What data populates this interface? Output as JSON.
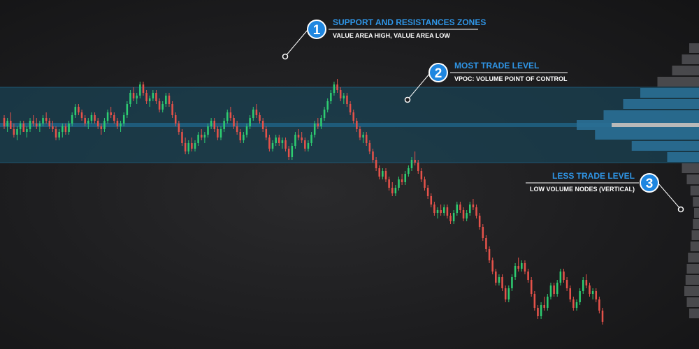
{
  "colors": {
    "up": "#2ecc71",
    "down": "#e5524a",
    "value_area": "#1a4253",
    "profile": "#2a6f95",
    "poc_line": "#1f5f80",
    "callout_title": "#2f95e6",
    "badge": "#1e86e0",
    "lvn": "#5a5a5e"
  },
  "callouts": [
    {
      "number": "1",
      "title": "SUPPORT AND RESISTANCES ZONES",
      "subtitle": "VALUE AREA HIGH, VALUE AREA LOW"
    },
    {
      "number": "2",
      "title": "MOST TRADE LEVEL",
      "subtitle": "VPOC: VOLUME POINT OF CONTROL"
    },
    {
      "number": "3",
      "title": "LESS TRADE LEVEL",
      "subtitle": "LOW VOLUME NODES (VERTICAL)"
    }
  ],
  "chart_data": {
    "type": "candlestick with volume profile",
    "axes_visible": false,
    "grid": false,
    "y_range": [
      0,
      100
    ],
    "value_area": {
      "high": 85,
      "low": 58
    },
    "poc": 71.5,
    "candles": [
      [
        74,
        75,
        70,
        71
      ],
      [
        71,
        74,
        69,
        73
      ],
      [
        73,
        76,
        70,
        70
      ],
      [
        70,
        72,
        67,
        68
      ],
      [
        68,
        71,
        66,
        70
      ],
      [
        70,
        73,
        68,
        72
      ],
      [
        72,
        73,
        69,
        69
      ],
      [
        69,
        71,
        67,
        70
      ],
      [
        70,
        74,
        69,
        73
      ],
      [
        73,
        75,
        71,
        72
      ],
      [
        72,
        74,
        70,
        71
      ],
      [
        71,
        73,
        69,
        72
      ],
      [
        72,
        75,
        71,
        74
      ],
      [
        74,
        76,
        72,
        73
      ],
      [
        73,
        74,
        70,
        71
      ],
      [
        71,
        73,
        69,
        70
      ],
      [
        70,
        71,
        66,
        67
      ],
      [
        67,
        70,
        66,
        69
      ],
      [
        69,
        72,
        67,
        71
      ],
      [
        71,
        72,
        68,
        69
      ],
      [
        69,
        73,
        68,
        72
      ],
      [
        72,
        76,
        71,
        75
      ],
      [
        75,
        79,
        74,
        78
      ],
      [
        78,
        79,
        75,
        76
      ],
      [
        76,
        77,
        73,
        74
      ],
      [
        74,
        75,
        71,
        72
      ],
      [
        72,
        74,
        70,
        73
      ],
      [
        73,
        76,
        72,
        75
      ],
      [
        75,
        76,
        72,
        73
      ],
      [
        73,
        74,
        70,
        71
      ],
      [
        71,
        72,
        68,
        70
      ],
      [
        70,
        74,
        69,
        73
      ],
      [
        73,
        77,
        72,
        76
      ],
      [
        76,
        78,
        74,
        75
      ],
      [
        75,
        76,
        72,
        73
      ],
      [
        73,
        74,
        70,
        71
      ],
      [
        71,
        73,
        69,
        72
      ],
      [
        72,
        76,
        71,
        75
      ],
      [
        75,
        80,
        74,
        79
      ],
      [
        79,
        84,
        78,
        83
      ],
      [
        83,
        85,
        80,
        81
      ],
      [
        81,
        83,
        79,
        82
      ],
      [
        82,
        87,
        81,
        86
      ],
      [
        86,
        87,
        82,
        83
      ],
      [
        83,
        84,
        79,
        80
      ],
      [
        80,
        82,
        78,
        81
      ],
      [
        81,
        84,
        80,
        83
      ],
      [
        83,
        84,
        79,
        80
      ],
      [
        80,
        81,
        76,
        77
      ],
      [
        77,
        80,
        76,
        79
      ],
      [
        79,
        83,
        78,
        82
      ],
      [
        82,
        83,
        78,
        79
      ],
      [
        79,
        80,
        74,
        75
      ],
      [
        75,
        76,
        71,
        72
      ],
      [
        72,
        73,
        68,
        69
      ],
      [
        69,
        70,
        64,
        65
      ],
      [
        65,
        67,
        61,
        62
      ],
      [
        62,
        66,
        61,
        65
      ],
      [
        65,
        67,
        62,
        63
      ],
      [
        63,
        66,
        62,
        65
      ],
      [
        65,
        69,
        64,
        68
      ],
      [
        68,
        70,
        66,
        67
      ],
      [
        67,
        69,
        65,
        68
      ],
      [
        68,
        72,
        67,
        71
      ],
      [
        71,
        74,
        70,
        73
      ],
      [
        73,
        74,
        69,
        70
      ],
      [
        70,
        71,
        66,
        67
      ],
      [
        67,
        71,
        66,
        70
      ],
      [
        70,
        74,
        69,
        73
      ],
      [
        73,
        77,
        72,
        76
      ],
      [
        76,
        78,
        73,
        74
      ],
      [
        74,
        75,
        70,
        71
      ],
      [
        71,
        73,
        68,
        69
      ],
      [
        69,
        70,
        65,
        66
      ],
      [
        66,
        69,
        65,
        68
      ],
      [
        68,
        72,
        67,
        71
      ],
      [
        71,
        75,
        70,
        74
      ],
      [
        74,
        78,
        73,
        77
      ],
      [
        77,
        79,
        74,
        75
      ],
      [
        75,
        76,
        72,
        73
      ],
      [
        73,
        74,
        69,
        70
      ],
      [
        70,
        71,
        66,
        67
      ],
      [
        67,
        68,
        62,
        63
      ],
      [
        63,
        66,
        62,
        65
      ],
      [
        65,
        68,
        64,
        67
      ],
      [
        67,
        68,
        64,
        65
      ],
      [
        65,
        67,
        63,
        66
      ],
      [
        66,
        67,
        62,
        63
      ],
      [
        63,
        64,
        59,
        60
      ],
      [
        60,
        65,
        59,
        64
      ],
      [
        64,
        69,
        63,
        68
      ],
      [
        68,
        70,
        66,
        67
      ],
      [
        67,
        69,
        65,
        66
      ],
      [
        66,
        67,
        62,
        63
      ],
      [
        63,
        66,
        62,
        65
      ],
      [
        65,
        69,
        64,
        68
      ],
      [
        68,
        73,
        67,
        72
      ],
      [
        72,
        74,
        70,
        71
      ],
      [
        71,
        75,
        70,
        74
      ],
      [
        74,
        78,
        73,
        77
      ],
      [
        77,
        81,
        76,
        80
      ],
      [
        80,
        84,
        79,
        83
      ],
      [
        83,
        87,
        82,
        86
      ],
      [
        86,
        88,
        83,
        84
      ],
      [
        84,
        85,
        80,
        81
      ],
      [
        81,
        83,
        79,
        82
      ],
      [
        82,
        83,
        78,
        79
      ],
      [
        79,
        80,
        75,
        76
      ],
      [
        76,
        77,
        72,
        73
      ],
      [
        73,
        74,
        69,
        70
      ],
      [
        70,
        71,
        66,
        67
      ],
      [
        67,
        69,
        65,
        68
      ],
      [
        68,
        69,
        64,
        65
      ],
      [
        65,
        66,
        61,
        62
      ],
      [
        62,
        63,
        58,
        59
      ],
      [
        59,
        60,
        55,
        56
      ],
      [
        56,
        57,
        52,
        53
      ],
      [
        53,
        56,
        52,
        55
      ],
      [
        55,
        56,
        51,
        52
      ],
      [
        52,
        53,
        48,
        49
      ],
      [
        49,
        51,
        46,
        47
      ],
      [
        47,
        50,
        46,
        49
      ],
      [
        49,
        53,
        48,
        52
      ],
      [
        52,
        54,
        50,
        51
      ],
      [
        51,
        55,
        50,
        54
      ],
      [
        54,
        57,
        53,
        56
      ],
      [
        56,
        60,
        55,
        59
      ],
      [
        59,
        62,
        57,
        58
      ],
      [
        58,
        59,
        54,
        55
      ],
      [
        55,
        56,
        51,
        52
      ],
      [
        52,
        53,
        48,
        49
      ],
      [
        49,
        50,
        45,
        46
      ],
      [
        46,
        47,
        42,
        43
      ],
      [
        43,
        44,
        39,
        40
      ],
      [
        40,
        42,
        38,
        41
      ],
      [
        41,
        43,
        39,
        40
      ],
      [
        40,
        43,
        39,
        42
      ],
      [
        42,
        43,
        38,
        39
      ],
      [
        39,
        40,
        36,
        37
      ],
      [
        37,
        41,
        36,
        40
      ],
      [
        40,
        44,
        39,
        43
      ],
      [
        43,
        44,
        40,
        41
      ],
      [
        41,
        42,
        37,
        38
      ],
      [
        38,
        41,
        37,
        40
      ],
      [
        40,
        44,
        39,
        43
      ],
      [
        43,
        45,
        41,
        42
      ],
      [
        42,
        43,
        38,
        39
      ],
      [
        39,
        40,
        34,
        35
      ],
      [
        35,
        36,
        30,
        31
      ],
      [
        31,
        32,
        26,
        27
      ],
      [
        27,
        28,
        22,
        23
      ],
      [
        23,
        24,
        18,
        19
      ],
      [
        19,
        20,
        14,
        15
      ],
      [
        15,
        18,
        14,
        17
      ],
      [
        17,
        18,
        12,
        13
      ],
      [
        13,
        14,
        8,
        9
      ],
      [
        9,
        14,
        8,
        13
      ],
      [
        13,
        18,
        12,
        17
      ],
      [
        17,
        22,
        16,
        21
      ],
      [
        21,
        24,
        19,
        20
      ],
      [
        20,
        23,
        19,
        22
      ],
      [
        22,
        23,
        18,
        19
      ],
      [
        19,
        20,
        15,
        16
      ],
      [
        16,
        17,
        10,
        11
      ],
      [
        11,
        12,
        5,
        6
      ],
      [
        6,
        7,
        2,
        3
      ],
      [
        3,
        8,
        2,
        7
      ],
      [
        7,
        10,
        5,
        6
      ],
      [
        6,
        11,
        5,
        10
      ],
      [
        10,
        15,
        9,
        14
      ],
      [
        14,
        15,
        10,
        11
      ],
      [
        11,
        16,
        10,
        15
      ],
      [
        15,
        20,
        14,
        19
      ],
      [
        19,
        20,
        15,
        16
      ],
      [
        16,
        17,
        12,
        13
      ],
      [
        13,
        14,
        8,
        9
      ],
      [
        9,
        10,
        5,
        6
      ],
      [
        6,
        9,
        5,
        8
      ],
      [
        8,
        13,
        7,
        12
      ],
      [
        12,
        17,
        11,
        16
      ],
      [
        16,
        18,
        13,
        14
      ],
      [
        14,
        15,
        10,
        11
      ],
      [
        11,
        13,
        9,
        12
      ],
      [
        12,
        13,
        8,
        9
      ],
      [
        9,
        10,
        4,
        5
      ],
      [
        5,
        6,
        0,
        1
      ]
    ],
    "profile": [
      {
        "level": 4,
        "volume": 8
      },
      {
        "level": 8,
        "volume": 10
      },
      {
        "level": 12,
        "volume": 12
      },
      {
        "level": 16,
        "volume": 11
      },
      {
        "level": 20,
        "volume": 10
      },
      {
        "level": 24,
        "volume": 9
      },
      {
        "level": 28,
        "volume": 7
      },
      {
        "level": 32,
        "volume": 6
      },
      {
        "level": 36,
        "volume": 5
      },
      {
        "level": 40,
        "volume": 4
      },
      {
        "level": 44,
        "volume": 5
      },
      {
        "level": 48,
        "volume": 7
      },
      {
        "level": 52,
        "volume": 10
      },
      {
        "level": 56,
        "volume": 14
      },
      {
        "level": 60,
        "volume": 26
      },
      {
        "level": 64,
        "volume": 55
      },
      {
        "level": 68,
        "volume": 85
      },
      {
        "level": 71.5,
        "volume": 100
      },
      {
        "level": 75,
        "volume": 78
      },
      {
        "level": 79,
        "volume": 62
      },
      {
        "level": 83,
        "volume": 48
      },
      {
        "level": 87,
        "volume": 34
      },
      {
        "level": 91,
        "volume": 22
      },
      {
        "level": 95,
        "volume": 14
      },
      {
        "level": 99,
        "volume": 8
      }
    ]
  }
}
